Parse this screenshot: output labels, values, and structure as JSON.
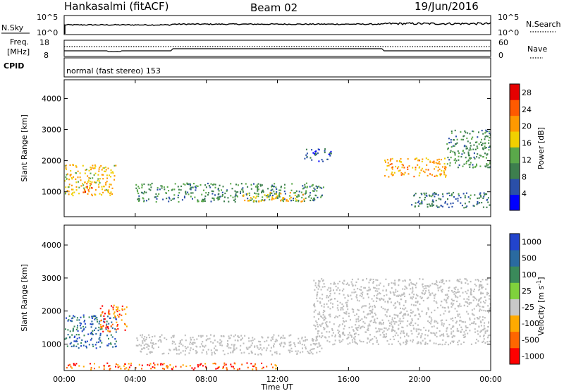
{
  "header": {
    "station": "Hankasalmi (fitACF)",
    "beam": "Beam 02",
    "date": "19/Jun/2016"
  },
  "housekeeping": {
    "nsky_label": "N.Sky",
    "nsearch_label": "N.Search",
    "nsky_ticks": [
      "10^5",
      "10^0"
    ],
    "nsearch_ticks": [
      "10^5",
      "10^0"
    ],
    "freq_label_1": "Freq.",
    "freq_label_2": "[MHz]",
    "freq_ticks": [
      "18",
      "8"
    ],
    "nave_label": "Nave",
    "nave_ticks": [
      "60",
      "0"
    ],
    "cpid_label": "CPID",
    "cpid_text": "normal (fast stereo) 153"
  },
  "colors": {
    "power": [
      "#0000ff",
      "#2a4fa8",
      "#3d7f4e",
      "#5aa84a",
      "#f0d000",
      "#ff9900",
      "#ff5a00",
      "#e60000"
    ],
    "velocity": [
      "#ff0000",
      "#ff6600",
      "#ffaa00",
      "#c8c8c8",
      "#7fd13c",
      "#3a8a5a",
      "#2a6aa0",
      "#2244cc"
    ],
    "ground_scatter": "#bebebe"
  },
  "chart_data": [
    {
      "type": "heatmap",
      "title": "",
      "xlabel": "",
      "ylabel": "Slant Range [km]",
      "xlim": [
        "00:00",
        "00:00"
      ],
      "x_ticks": [
        "00:00",
        "04:00",
        "08:00",
        "12:00",
        "16:00",
        "20:00",
        "00:00"
      ],
      "ylim": [
        200,
        4600
      ],
      "y_ticks": [
        1000,
        2000,
        3000,
        4000
      ],
      "colorbar": {
        "label": "Power [dB]",
        "ticks": [
          4,
          8,
          12,
          16,
          20,
          24,
          28
        ],
        "range": [
          0,
          30
        ]
      },
      "features": [
        {
          "t0": 0.0,
          "t1": 2.9,
          "r_start": 900,
          "r_end": 1900,
          "power_db": 18
        },
        {
          "t0": 1.0,
          "t1": 1.6,
          "r_start": 1000,
          "r_end": 1300,
          "power_db": 26
        },
        {
          "t0": 4.0,
          "t1": 14.6,
          "r_start": 700,
          "r_end": 1300,
          "power_db": 10
        },
        {
          "t0": 10.0,
          "t1": 13.5,
          "r_start": 700,
          "r_end": 1000,
          "power_db": 18
        },
        {
          "t0": 13.5,
          "t1": 15.0,
          "r_start": 2000,
          "r_end": 2400,
          "power_db": 6
        },
        {
          "t0": 18.0,
          "t1": 21.5,
          "r_start": 1500,
          "r_end": 2100,
          "power_db": 20
        },
        {
          "t0": 21.5,
          "t1": 24.0,
          "r_start": 1800,
          "r_end": 3000,
          "power_db": 10
        },
        {
          "t0": 19.5,
          "t1": 24.0,
          "r_start": 500,
          "r_end": 1000,
          "power_db": 8
        }
      ]
    },
    {
      "type": "heatmap",
      "title": "",
      "xlabel": "Time UT",
      "ylabel": "Slant Range [km]",
      "xlim": [
        "00:00",
        "00:00"
      ],
      "x_ticks": [
        "00:00",
        "04:00",
        "08:00",
        "12:00",
        "16:00",
        "20:00",
        "00:00"
      ],
      "ylim": [
        200,
        4600
      ],
      "y_ticks": [
        1000,
        2000,
        3000,
        4000
      ],
      "colorbar": {
        "label": "Velocity [m s",
        "label_sup": "-1",
        "label_end": "]",
        "ticks": [
          1000,
          500,
          100,
          25,
          -25,
          -100,
          -500,
          -1000
        ]
      },
      "features": [
        {
          "t0": 0.0,
          "t1": 2.9,
          "r_start": 900,
          "r_end": 1900,
          "velocity": 300
        },
        {
          "t0": 2.0,
          "t1": 3.5,
          "r_start": 1400,
          "r_end": 2200,
          "velocity": -300
        },
        {
          "t0": 4.0,
          "t1": 14.6,
          "r_start": 700,
          "r_end": 1300,
          "velocity": 0
        },
        {
          "t0": 14.0,
          "t1": 24.0,
          "r_start": 1000,
          "r_end": 3000,
          "velocity": 0
        },
        {
          "t0": 0.0,
          "t1": 12.0,
          "r_start": 250,
          "r_end": 450,
          "velocity": -150
        }
      ]
    }
  ]
}
